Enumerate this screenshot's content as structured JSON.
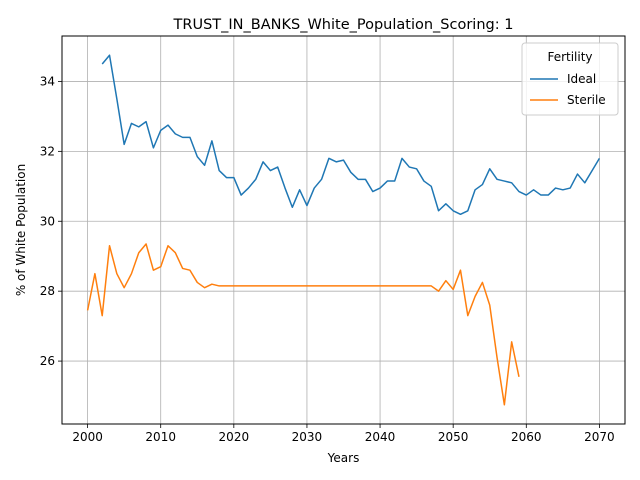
{
  "chart_data": {
    "type": "line",
    "title": "TRUST_IN_BANKS_White_Population_Scoring: 1",
    "xlabel": "Years",
    "ylabel": "% of White Population",
    "xlim": [
      1996.5,
      2073.5
    ],
    "ylim": [
      24.2,
      35.3
    ],
    "xticks": [
      2000,
      2010,
      2020,
      2030,
      2040,
      2050,
      2060,
      2070
    ],
    "yticks": [
      26,
      28,
      30,
      32,
      34
    ],
    "grid": true,
    "legend": {
      "title": "Fertility",
      "position": "top-right"
    },
    "series": [
      {
        "name": "Ideal",
        "color": "#1f77b4",
        "x": [
          2002,
          2003,
          2004,
          2005,
          2006,
          2007,
          2008,
          2009,
          2010,
          2011,
          2012,
          2013,
          2014,
          2015,
          2016,
          2017,
          2018,
          2019,
          2020,
          2021,
          2022,
          2023,
          2024,
          2025,
          2026,
          2027,
          2028,
          2029,
          2030,
          2031,
          2032,
          2033,
          2034,
          2035,
          2036,
          2037,
          2038,
          2039,
          2040,
          2041,
          2042,
          2043,
          2044,
          2045,
          2046,
          2047,
          2048,
          2049,
          2050,
          2051,
          2052,
          2053,
          2054,
          2055,
          2056,
          2057,
          2058,
          2059,
          2060,
          2061,
          2062,
          2063,
          2064,
          2065,
          2066,
          2067,
          2068,
          2069,
          2070
        ],
        "values": [
          34.5,
          34.75,
          33.5,
          32.2,
          32.8,
          32.7,
          32.85,
          32.1,
          32.6,
          32.75,
          32.5,
          32.4,
          32.4,
          31.85,
          31.6,
          32.3,
          31.45,
          31.25,
          31.25,
          30.75,
          30.95,
          31.2,
          31.7,
          31.45,
          31.55,
          30.95,
          30.4,
          30.9,
          30.45,
          30.95,
          31.2,
          31.8,
          31.7,
          31.75,
          31.4,
          31.2,
          31.2,
          30.85,
          30.95,
          31.15,
          31.15,
          31.8,
          31.55,
          31.5,
          31.15,
          31.0,
          30.3,
          30.5,
          30.3,
          30.2,
          30.3,
          30.9,
          31.05,
          31.5,
          31.2,
          31.15,
          31.1,
          30.85,
          30.75,
          30.9,
          30.75,
          30.75,
          30.95,
          30.9,
          30.95,
          31.35,
          31.1,
          31.45,
          31.8
        ]
      },
      {
        "name": "Sterile",
        "color": "#ff7f0e",
        "x": [
          2000,
          2001,
          2002,
          2003,
          2004,
          2005,
          2006,
          2007,
          2008,
          2009,
          2010,
          2011,
          2012,
          2013,
          2014,
          2015,
          2016,
          2017,
          2018,
          2019,
          2020,
          2021,
          2022,
          2023,
          2024,
          2025,
          2026,
          2027,
          2028,
          2029,
          2030,
          2031,
          2032,
          2033,
          2034,
          2035,
          2036,
          2037,
          2038,
          2039,
          2040,
          2041,
          2042,
          2043,
          2044,
          2045,
          2046,
          2047,
          2048,
          2049,
          2050,
          2051,
          2052,
          2053,
          2054,
          2055,
          2056,
          2057,
          2058,
          2059
        ],
        "values": [
          27.45,
          28.5,
          27.3,
          29.3,
          28.5,
          28.1,
          28.5,
          29.1,
          29.35,
          28.6,
          28.7,
          29.3,
          29.1,
          28.65,
          28.6,
          28.25,
          28.1,
          28.2,
          28.15,
          28.15,
          28.15,
          28.15,
          28.15,
          28.15,
          28.15,
          28.15,
          28.15,
          28.15,
          28.15,
          28.15,
          28.15,
          28.15,
          28.15,
          28.15,
          28.15,
          28.15,
          28.15,
          28.15,
          28.15,
          28.15,
          28.15,
          28.15,
          28.15,
          28.15,
          28.15,
          28.15,
          28.15,
          28.15,
          28.0,
          28.3,
          28.05,
          28.6,
          27.3,
          27.85,
          28.25,
          27.6,
          26.1,
          24.75,
          26.55,
          25.55
        ]
      }
    ]
  }
}
